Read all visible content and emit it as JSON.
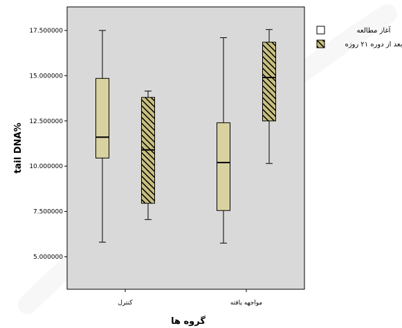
{
  "chart_data": {
    "type": "box",
    "ylabel": "tail DNA%",
    "xlabel": "گروه ها",
    "ylim": [
      3.2,
      18.8
    ],
    "yticks": [
      5,
      7.5,
      10,
      12.5,
      15,
      17.5
    ],
    "ytick_labels": [
      "5.000000",
      "7.500000",
      "10.000000",
      "12.500000",
      "15.000000",
      "17.500000"
    ],
    "categories": [
      "کنترل",
      "مواجهه یافته"
    ],
    "legend_position": "top-right",
    "series": [
      {
        "name": "آغاز مطالعه",
        "fill": "#d8d2a0",
        "pattern": "none",
        "boxes": [
          {
            "min": 5.8,
            "q1": 10.45,
            "median": 11.6,
            "q3": 14.85,
            "max": 17.5
          },
          {
            "min": 5.75,
            "q1": 7.55,
            "median": 10.2,
            "q3": 12.4,
            "max": 17.1
          }
        ]
      },
      {
        "name": "بعد از دوره ۲۱ روزه",
        "fill": "#c8bf80",
        "pattern": "hatch",
        "boxes": [
          {
            "min": 7.05,
            "q1": 7.95,
            "median": 10.9,
            "q3": 13.8,
            "max": 14.15
          },
          {
            "min": 10.15,
            "q1": 12.5,
            "median": 14.9,
            "q3": 16.85,
            "max": 17.55
          }
        ]
      }
    ]
  },
  "colors": {
    "plot_background": "#d9d9d9",
    "box_plain": "#d8d2a0",
    "box_hatched_base": "#c8bf80",
    "hatch_line": "#000000"
  }
}
